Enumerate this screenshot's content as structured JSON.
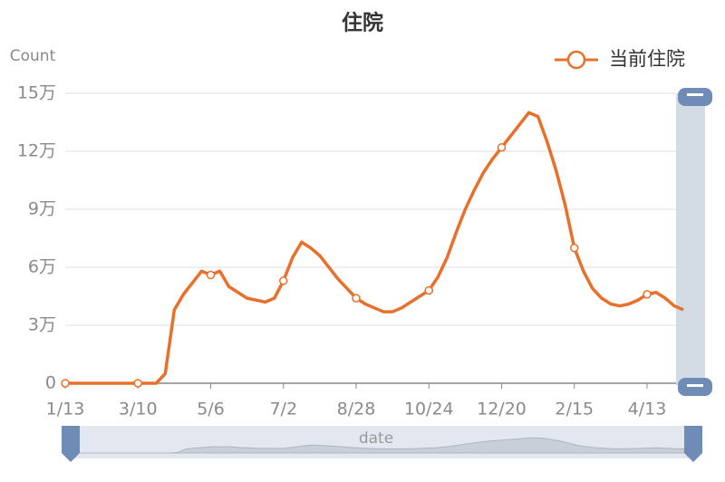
{
  "chart_data": {
    "type": "line",
    "title": "住院",
    "x_label": "date",
    "y_label": "Count",
    "categories": [
      "1/13",
      null,
      null,
      null,
      null,
      null,
      null,
      null,
      "3/10",
      null,
      null,
      null,
      null,
      null,
      null,
      null,
      "5/6",
      null,
      null,
      null,
      null,
      null,
      null,
      null,
      "7/2",
      null,
      null,
      null,
      null,
      null,
      null,
      null,
      "8/28",
      null,
      null,
      null,
      null,
      null,
      null,
      null,
      "10/24",
      null,
      null,
      null,
      null,
      null,
      null,
      null,
      "12/20",
      null,
      null,
      null,
      null,
      null,
      null,
      null,
      "2/15",
      null,
      null,
      null,
      null,
      null,
      null,
      null,
      "4/13",
      null,
      null,
      null,
      null
    ],
    "series": [
      {
        "name": "当前住院",
        "color": "#e8702a",
        "values": [
          0,
          0,
          0,
          0,
          0,
          0,
          0,
          0,
          0,
          0,
          0,
          5000,
          38000,
          46000,
          52000,
          58000,
          56000,
          58000,
          50000,
          47000,
          44000,
          43000,
          42000,
          44000,
          53000,
          65000,
          73000,
          70000,
          66000,
          60000,
          54000,
          49000,
          44000,
          41000,
          39000,
          37000,
          37000,
          39000,
          42000,
          45000,
          48000,
          55000,
          65000,
          78000,
          90000,
          100000,
          109000,
          116000,
          122000,
          128000,
          134000,
          140000,
          138000,
          125000,
          110000,
          92000,
          70000,
          58000,
          49000,
          44000,
          41000,
          40000,
          41000,
          43000,
          46000,
          47000,
          44000,
          40000,
          38000
        ]
      }
    ],
    "ylim": [
      0,
      150000
    ],
    "yticks": [
      0,
      {
        "value": 30000,
        "label": "3万"
      },
      {
        "value": 60000,
        "label": "6万"
      },
      {
        "value": 90000,
        "label": "9万"
      },
      {
        "value": 120000,
        "label": "12万"
      },
      {
        "value": 150000,
        "label": "15万"
      }
    ],
    "grid": true,
    "legend": "top-right"
  }
}
